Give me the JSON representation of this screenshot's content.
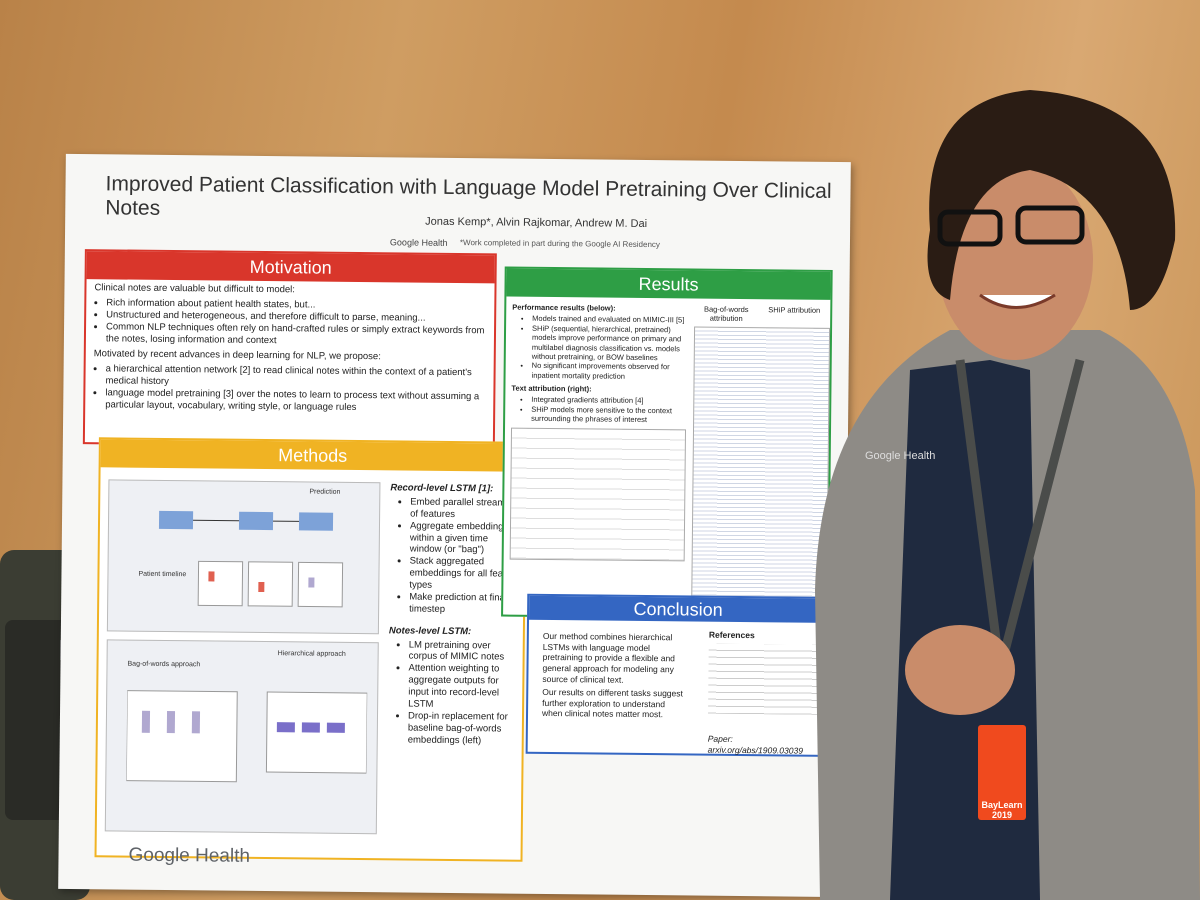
{
  "poster": {
    "title": "Improved Patient Classification with Language Model Pretraining Over Clinical Notes",
    "authors": "Jonas Kemp*, Alvin Rajkomar, Andrew M. Dai",
    "affiliation": "Google Health",
    "footnote": "*Work completed in part during the Google AI Residency",
    "motivation": {
      "heading": "Motivation",
      "intro": "Clinical notes are valuable but difficult to model:",
      "bullets": [
        "Rich information about patient health states, but...",
        "Unstructured and heterogeneous, and therefore difficult to parse, meaning...",
        "Common NLP techniques often rely on hand-crafted rules or simply extract keywords from the notes, losing information and context"
      ],
      "proposal": "Motivated by recent advances in deep learning for NLP, we propose:",
      "proposals": [
        "a hierarchical attention network [2] to read clinical notes within the context of a patient's medical history",
        "language model pretraining [3] over the notes to learn to process text without assuming a particular layout, vocabulary, writing style, or language rules"
      ]
    },
    "methods": {
      "heading": "Methods",
      "record_title": "Record-level LSTM [1]:",
      "record_bullets": [
        "Embed parallel streams of features",
        "Aggregate embeddings within a given time window (or \"bag\")",
        "Stack aggregated embeddings for all feature types",
        "Make prediction at final timestep"
      ],
      "notes_title": "Notes-level LSTM:",
      "notes_bullets": [
        "LM pretraining over corpus of MIMIC notes",
        "Attention weighting to aggregate outputs for input into record-level LSTM",
        "Drop-in replacement for baseline bag-of-words embeddings (left)"
      ],
      "diagram_labels": [
        "Bag-of-words approach",
        "Hierarchical approach",
        "Patient timeline",
        "Prediction"
      ]
    },
    "results": {
      "heading": "Results",
      "perf_title": "Performance results (below):",
      "perf_bullets": [
        "Models trained and evaluated on MIMIC-III [5]",
        "SHiP (sequential, hierarchical, pretrained) models improve performance on primary and multilabel diagnosis classification vs. models without pretraining, or BOW baselines",
        "No significant improvements observed for inpatient mortality prediction"
      ],
      "attr_title": "Text attribution (right):",
      "attr_bullets": [
        "Integrated gradients attribution [4]",
        "SHiP models more sensitive to the context surrounding the phrases of interest"
      ],
      "col1": "Bag-of-words attribution",
      "col2": "SHiP attribution"
    },
    "conclusion": {
      "heading": "Conclusion",
      "paragraphs": [
        "Our method combines hierarchical LSTMs with language model pretraining to provide a flexible and general approach for modeling any source of clinical text.",
        "Our results on different tasks suggest further exploration to understand when clinical notes matter most."
      ],
      "references_title": "References",
      "paper": "Paper: arxiv.org/abs/1909.03039"
    },
    "logo": "Google Health"
  },
  "badge": "BayLearn 2019",
  "shirt_logo": "Google Health"
}
